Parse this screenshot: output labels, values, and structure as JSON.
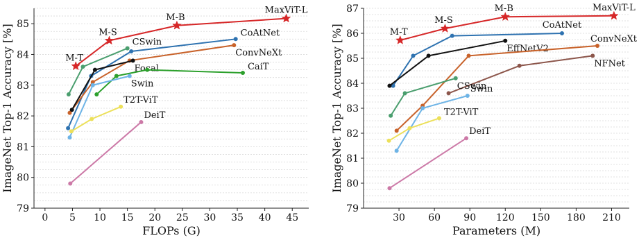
{
  "chart_data": [
    {
      "type": "line",
      "xlabel": "FLOPs (G)",
      "ylabel": "ImageNet Top-1 Accuracy [%]",
      "xlim": [
        -2,
        48
      ],
      "ylim": [
        79,
        85.5
      ],
      "xticks": [
        0,
        5,
        10,
        15,
        20,
        25,
        30,
        35,
        40,
        45
      ],
      "yticks": [
        79,
        80,
        81,
        82,
        83,
        84,
        85
      ],
      "grid": true,
      "series": [
        {
          "name": "MaxViT-L",
          "color": "#d62728",
          "marker": "star",
          "points": [
            [
              5.6,
              83.62
            ],
            [
              11.7,
              84.45
            ],
            [
              24,
              84.94
            ],
            [
              43.9,
              85.17
            ]
          ],
          "labels": [
            {
              "i": 0,
              "text": "M-T",
              "pos": "tl"
            },
            {
              "i": 1,
              "text": "M-S",
              "pos": "tl"
            },
            {
              "i": 2,
              "text": "M-B",
              "pos": "tl"
            },
            {
              "i": 3,
              "text": "MaxViT-L",
              "pos": "tl"
            }
          ]
        },
        {
          "name": "CoAtNet",
          "color": "#2e72b0",
          "marker": "dot",
          "points": [
            [
              4.2,
              81.6
            ],
            [
              8.4,
              83.3
            ],
            [
              15.7,
              84.1
            ],
            [
              34.7,
              84.5
            ]
          ],
          "labels": [
            {
              "i": 3,
              "text": "CoAtNet",
              "pos": "r"
            }
          ]
        },
        {
          "name": "ConvNeXt",
          "color": "#c8622a",
          "marker": "dot",
          "points": [
            [
              4.5,
              82.1
            ],
            [
              8.7,
              83.1
            ],
            [
              15.4,
              83.8
            ],
            [
              34.4,
              84.3
            ]
          ],
          "labels": [
            {
              "i": 3,
              "text": "ConvNeXt",
              "pos": "br"
            }
          ]
        },
        {
          "name": "CSwin",
          "color": "#4a9e6e",
          "marker": "dot",
          "points": [
            [
              4.3,
              82.7
            ],
            [
              6.9,
              83.6
            ],
            [
              15,
              84.2
            ]
          ],
          "labels": [
            {
              "i": 2,
              "text": "CSwin",
              "pos": "r"
            }
          ]
        },
        {
          "name": "Focal",
          "color": "#111111",
          "marker": "dot",
          "points": [
            [
              4.9,
              82.2
            ],
            [
              9.1,
              83.5
            ],
            [
              16,
              83.8
            ]
          ],
          "labels": [
            {
              "i": 2,
              "text": "Focal",
              "pos": "br"
            }
          ]
        },
        {
          "name": "CaiT",
          "color": "#2ca02c",
          "marker": "dot",
          "points": [
            [
              9.4,
              82.7
            ],
            [
              13,
              83.3
            ],
            [
              18.6,
              83.5
            ],
            [
              36,
              83.4
            ]
          ],
          "labels": [
            {
              "i": 3,
              "text": "CaiT",
              "pos": "r"
            }
          ]
        },
        {
          "name": "Swin",
          "color": "#6eb4e6",
          "marker": "dot",
          "points": [
            [
              4.5,
              81.3
            ],
            [
              8.7,
              83
            ],
            [
              15.4,
              83.3
            ]
          ],
          "labels": [
            {
              "i": 2,
              "text": "Swin",
              "pos": "br"
            }
          ]
        },
        {
          "name": "T2T-ViT",
          "color": "#ece05a",
          "marker": "dot",
          "points": [
            [
              4.8,
              81.5
            ],
            [
              8.5,
              81.9
            ],
            [
              13.8,
              82.3
            ]
          ],
          "labels": [
            {
              "i": 2,
              "text": "T2T-ViT",
              "pos": "tr"
            }
          ]
        },
        {
          "name": "DeiT",
          "color": "#cc79a7",
          "marker": "dot",
          "points": [
            [
              4.6,
              79.8
            ],
            [
              17.5,
              81.8
            ]
          ],
          "labels": [
            {
              "i": 1,
              "text": "DeiT",
              "pos": "tr"
            }
          ]
        }
      ]
    },
    {
      "type": "line",
      "xlabel": "Parameters (M)",
      "ylabel": "ImageNet Top-1 Accuracy [%]",
      "xlim": [
        0,
        225
      ],
      "ylim": [
        79,
        87
      ],
      "xticks": [
        30,
        60,
        90,
        120,
        150,
        180,
        210
      ],
      "yticks": [
        79,
        80,
        81,
        82,
        83,
        84,
        85,
        86,
        87
      ],
      "grid": true,
      "series": [
        {
          "name": "MaxViT-L",
          "color": "#d62728",
          "marker": "star",
          "points": [
            [
              31,
              85.72
            ],
            [
              69,
              86.19
            ],
            [
              120,
              86.66
            ],
            [
              212,
              86.7
            ]
          ],
          "labels": [
            {
              "i": 0,
              "text": "M-T",
              "pos": "tl"
            },
            {
              "i": 1,
              "text": "M-S",
              "pos": "tl"
            },
            {
              "i": 2,
              "text": "M-B",
              "pos": "tl"
            },
            {
              "i": 3,
              "text": "MaxViT-L",
              "pos": "tl"
            }
          ]
        },
        {
          "name": "CoAtNet",
          "color": "#2e72b0",
          "marker": "dot",
          "points": [
            [
              25,
              83.9
            ],
            [
              42,
              85.1
            ],
            [
              75,
              85.9
            ],
            [
              168,
              86
            ]
          ],
          "labels": [
            {
              "i": 3,
              "text": "CoAtNet",
              "pos": "tl"
            }
          ]
        },
        {
          "name": "EffNetV2",
          "color": "#111111",
          "marker": "dot",
          "points": [
            [
              22,
              83.9
            ],
            [
              55,
              85.1
            ],
            [
              120,
              85.7
            ]
          ],
          "labels": [
            {
              "i": 2,
              "text": "EffNetV2",
              "pos": "br"
            }
          ]
        },
        {
          "name": "ConvNeXt",
          "color": "#c8622a",
          "marker": "dot",
          "points": [
            [
              28,
              82.1
            ],
            [
              50,
              83.1
            ],
            [
              89,
              85.1
            ],
            [
              198,
              85.5
            ]
          ],
          "labels": [
            {
              "i": 3,
              "text": "ConvNeXt",
              "pos": "tr"
            }
          ]
        },
        {
          "name": "NFNet",
          "color": "#8c564b",
          "marker": "dot",
          "points": [
            [
              72,
              83.6
            ],
            [
              132,
              84.7
            ],
            [
              194,
              85.1
            ]
          ],
          "labels": [
            {
              "i": 2,
              "text": "NFNet",
              "pos": "br"
            }
          ]
        },
        {
          "name": "Swin",
          "color": "#6eb4e6",
          "marker": "dot",
          "points": [
            [
              28,
              81.3
            ],
            [
              50,
              83
            ],
            [
              88,
              83.5
            ]
          ],
          "labels": [
            {
              "i": 2,
              "text": "Swin",
              "pos": "tr"
            }
          ]
        },
        {
          "name": "CSwin",
          "color": "#4a9e6e",
          "marker": "dot",
          "points": [
            [
              23,
              82.7
            ],
            [
              35,
              83.6
            ],
            [
              78,
              84.2
            ]
          ],
          "labels": [
            {
              "i": 2,
              "text": "CSwin",
              "pos": "br"
            }
          ]
        },
        {
          "name": "T2T-ViT",
          "color": "#ece05a",
          "marker": "dot",
          "points": [
            [
              21.5,
              81.7
            ],
            [
              39,
              82.2
            ],
            [
              64,
              82.6
            ]
          ],
          "labels": [
            {
              "i": 2,
              "text": "T2T-ViT",
              "pos": "r"
            }
          ]
        },
        {
          "name": "DeiT",
          "color": "#cc79a7",
          "marker": "dot",
          "points": [
            [
              22,
              79.8
            ],
            [
              87,
              81.8
            ]
          ],
          "labels": [
            {
              "i": 1,
              "text": "DeiT",
              "pos": "tr"
            }
          ]
        }
      ]
    }
  ]
}
